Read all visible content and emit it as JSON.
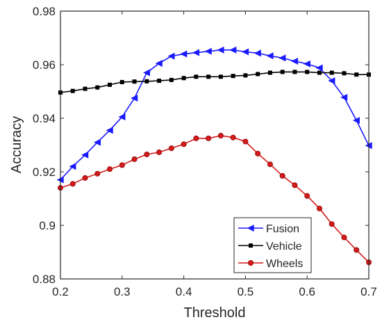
{
  "chart_data": {
    "type": "line",
    "title": "",
    "xlabel": "Threshold",
    "ylabel": "Accuracy",
    "xlim": [
      0.2,
      0.7
    ],
    "ylim": [
      0.88,
      0.98
    ],
    "xticks": [
      0.2,
      0.3,
      0.4,
      0.5,
      0.6,
      0.7
    ],
    "xtick_labels": [
      "0.2",
      "0.3",
      "0.4",
      "0.5",
      "0.6",
      "0.7"
    ],
    "yticks": [
      0.88,
      0.9,
      0.92,
      0.94,
      0.96,
      0.98
    ],
    "ytick_labels": [
      "0.88",
      "0.9",
      "0.92",
      "0.94",
      "0.96",
      "0.98"
    ],
    "grid": false,
    "legend_position": "bottom-right",
    "x": [
      0.2,
      0.22,
      0.24,
      0.26,
      0.28,
      0.3,
      0.32,
      0.34,
      0.36,
      0.38,
      0.4,
      0.42,
      0.44,
      0.46,
      0.48,
      0.5,
      0.52,
      0.54,
      0.56,
      0.58,
      0.6,
      0.62,
      0.64,
      0.66,
      0.68,
      0.7
    ],
    "series": [
      {
        "name": "Fusion",
        "color": "#1a1aff",
        "marker": "triangle-left",
        "values": [
          0.917,
          0.922,
          0.9263,
          0.931,
          0.9355,
          0.9405,
          0.9475,
          0.957,
          0.9605,
          0.9632,
          0.964,
          0.9645,
          0.965,
          0.9655,
          0.9655,
          0.9648,
          0.9643,
          0.9633,
          0.9625,
          0.9613,
          0.9603,
          0.9588,
          0.954,
          0.9478,
          0.9392,
          0.9298
        ]
      },
      {
        "name": "Vehicle",
        "color": "#000000",
        "marker": "square",
        "values": [
          0.9496,
          0.9502,
          0.951,
          0.9515,
          0.9525,
          0.9535,
          0.9537,
          0.9538,
          0.954,
          0.9543,
          0.955,
          0.9555,
          0.9555,
          0.9555,
          0.9558,
          0.956,
          0.9565,
          0.957,
          0.9573,
          0.9573,
          0.9573,
          0.957,
          0.957,
          0.9568,
          0.9563,
          0.9563
        ]
      },
      {
        "name": "Wheels",
        "color": "#d41a1a",
        "marker": "circle",
        "values": [
          0.914,
          0.9155,
          0.9177,
          0.9193,
          0.921,
          0.9225,
          0.9247,
          0.9265,
          0.9273,
          0.9288,
          0.9303,
          0.9325,
          0.9325,
          0.9335,
          0.9328,
          0.9313,
          0.9268,
          0.9228,
          0.9185,
          0.915,
          0.911,
          0.9063,
          0.9005,
          0.8955,
          0.8908,
          0.8862
        ]
      }
    ]
  }
}
